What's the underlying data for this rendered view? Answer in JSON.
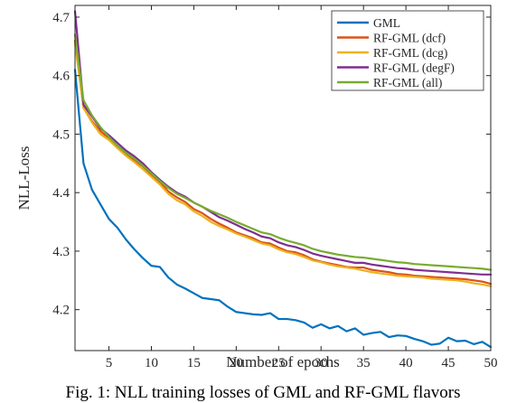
{
  "chart_data": {
    "type": "line",
    "xlabel": "Number of epochs",
    "ylabel": "NLL-Loss",
    "xlim": [
      1,
      50
    ],
    "ylim": [
      4.13,
      4.72
    ],
    "xticks": [
      5,
      10,
      15,
      20,
      25,
      30,
      35,
      40,
      45,
      50
    ],
    "yticks": [
      4.2,
      4.3,
      4.4,
      4.5,
      4.6,
      4.7
    ],
    "grid": false,
    "legend_position": "top-right",
    "x": [
      1,
      2,
      3,
      4,
      5,
      6,
      7,
      8,
      9,
      10,
      11,
      12,
      13,
      14,
      15,
      16,
      17,
      18,
      19,
      20,
      21,
      22,
      23,
      24,
      25,
      26,
      27,
      28,
      29,
      30,
      31,
      32,
      33,
      34,
      35,
      36,
      37,
      38,
      39,
      40,
      41,
      42,
      43,
      44,
      45,
      46,
      47,
      48,
      49,
      50
    ],
    "series": [
      {
        "name": "GML",
        "color": "#0072BD",
        "values": [
          4.61,
          4.45,
          4.405,
          4.38,
          4.355,
          4.34,
          4.32,
          4.303,
          4.288,
          4.275,
          4.273,
          4.255,
          4.243,
          4.236,
          4.228,
          4.22,
          4.218,
          4.216,
          4.205,
          4.196,
          4.194,
          4.192,
          4.191,
          4.194,
          4.184,
          4.184,
          4.182,
          4.178,
          4.169,
          4.175,
          4.168,
          4.172,
          4.163,
          4.168,
          4.157,
          4.16,
          4.162,
          4.153,
          4.156,
          4.155,
          4.15,
          4.146,
          4.14,
          4.142,
          4.152,
          4.146,
          4.147,
          4.141,
          4.145,
          4.136
        ]
      },
      {
        "name": "RF-GML (dcf)",
        "color": "#D95319",
        "values": [
          4.66,
          4.545,
          4.522,
          4.505,
          4.493,
          4.478,
          4.465,
          4.455,
          4.445,
          4.43,
          4.418,
          4.402,
          4.392,
          4.384,
          4.372,
          4.365,
          4.355,
          4.347,
          4.34,
          4.332,
          4.327,
          4.322,
          4.315,
          4.313,
          4.306,
          4.3,
          4.298,
          4.293,
          4.286,
          4.282,
          4.279,
          4.276,
          4.273,
          4.272,
          4.272,
          4.268,
          4.266,
          4.264,
          4.261,
          4.26,
          4.258,
          4.257,
          4.256,
          4.255,
          4.254,
          4.253,
          4.252,
          4.25,
          4.248,
          4.244
        ]
      },
      {
        "name": "RF-GML (dcg)",
        "color": "#EDB120",
        "values": [
          4.655,
          4.545,
          4.52,
          4.5,
          4.49,
          4.476,
          4.463,
          4.452,
          4.44,
          4.427,
          4.414,
          4.398,
          4.387,
          4.38,
          4.368,
          4.36,
          4.35,
          4.343,
          4.337,
          4.33,
          4.325,
          4.319,
          4.313,
          4.31,
          4.303,
          4.298,
          4.295,
          4.29,
          4.284,
          4.281,
          4.277,
          4.274,
          4.272,
          4.27,
          4.267,
          4.264,
          4.262,
          4.26,
          4.258,
          4.257,
          4.256,
          4.255,
          4.253,
          4.252,
          4.251,
          4.25,
          4.248,
          4.245,
          4.243,
          4.24
        ]
      },
      {
        "name": "RF-GML (degF)",
        "color": "#7E2F8E",
        "values": [
          4.71,
          4.55,
          4.53,
          4.51,
          4.498,
          4.485,
          4.472,
          4.462,
          4.45,
          4.435,
          4.422,
          4.41,
          4.4,
          4.393,
          4.383,
          4.376,
          4.367,
          4.358,
          4.352,
          4.345,
          4.338,
          4.332,
          4.325,
          4.322,
          4.315,
          4.31,
          4.307,
          4.302,
          4.296,
          4.292,
          4.289,
          4.286,
          4.283,
          4.28,
          4.28,
          4.277,
          4.275,
          4.273,
          4.271,
          4.27,
          4.268,
          4.267,
          4.266,
          4.265,
          4.264,
          4.263,
          4.262,
          4.261,
          4.26,
          4.26
        ]
      },
      {
        "name": "RF-GML (all)",
        "color": "#77AC30",
        "values": [
          4.67,
          4.558,
          4.532,
          4.512,
          4.495,
          4.48,
          4.468,
          4.458,
          4.446,
          4.433,
          4.42,
          4.408,
          4.398,
          4.391,
          4.383,
          4.376,
          4.369,
          4.363,
          4.357,
          4.35,
          4.344,
          4.338,
          4.332,
          4.329,
          4.323,
          4.318,
          4.314,
          4.31,
          4.304,
          4.3,
          4.297,
          4.294,
          4.292,
          4.29,
          4.289,
          4.287,
          4.285,
          4.283,
          4.281,
          4.28,
          4.278,
          4.277,
          4.276,
          4.275,
          4.274,
          4.273,
          4.272,
          4.271,
          4.27,
          4.268
        ]
      }
    ]
  },
  "caption": "Fig. 1: NLL training losses of GML and RF-GML flavors"
}
